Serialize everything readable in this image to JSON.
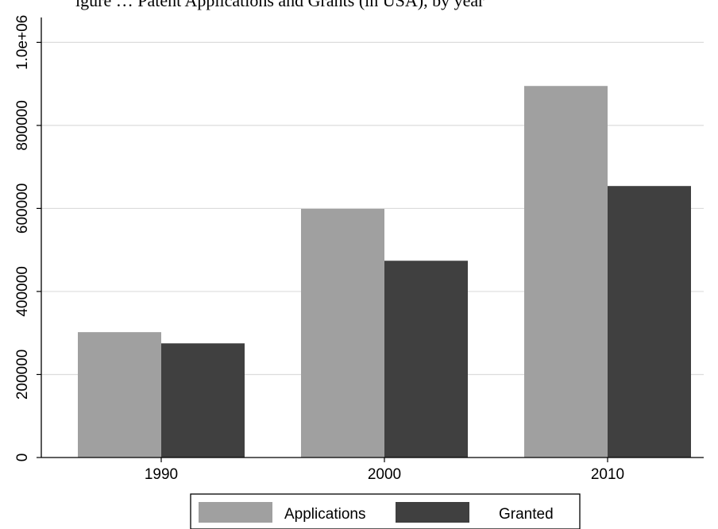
{
  "title_fragment": "igure … Patent Applications and Grants (in USA), by year",
  "chart_data": {
    "type": "bar",
    "title": "igure … Patent Applications and Grants (in USA), by year",
    "xlabel": "",
    "ylabel": "",
    "categories": [
      "1990",
      "2000",
      "2010"
    ],
    "series": [
      {
        "name": "Applications",
        "values": [
          302000,
          599000,
          895000
        ],
        "color": "#a0a0a0"
      },
      {
        "name": "Granted",
        "values": [
          275000,
          474000,
          654000
        ],
        "color": "#404040"
      }
    ],
    "ylim": [
      0,
      1060000
    ],
    "yticks": [
      0,
      200000,
      400000,
      600000,
      800000,
      1000000
    ],
    "ytick_labels": [
      "0",
      "200000",
      "400000",
      "600000",
      "800000",
      "1.0e+06"
    ],
    "grid": true,
    "legend_position": "bottom"
  }
}
